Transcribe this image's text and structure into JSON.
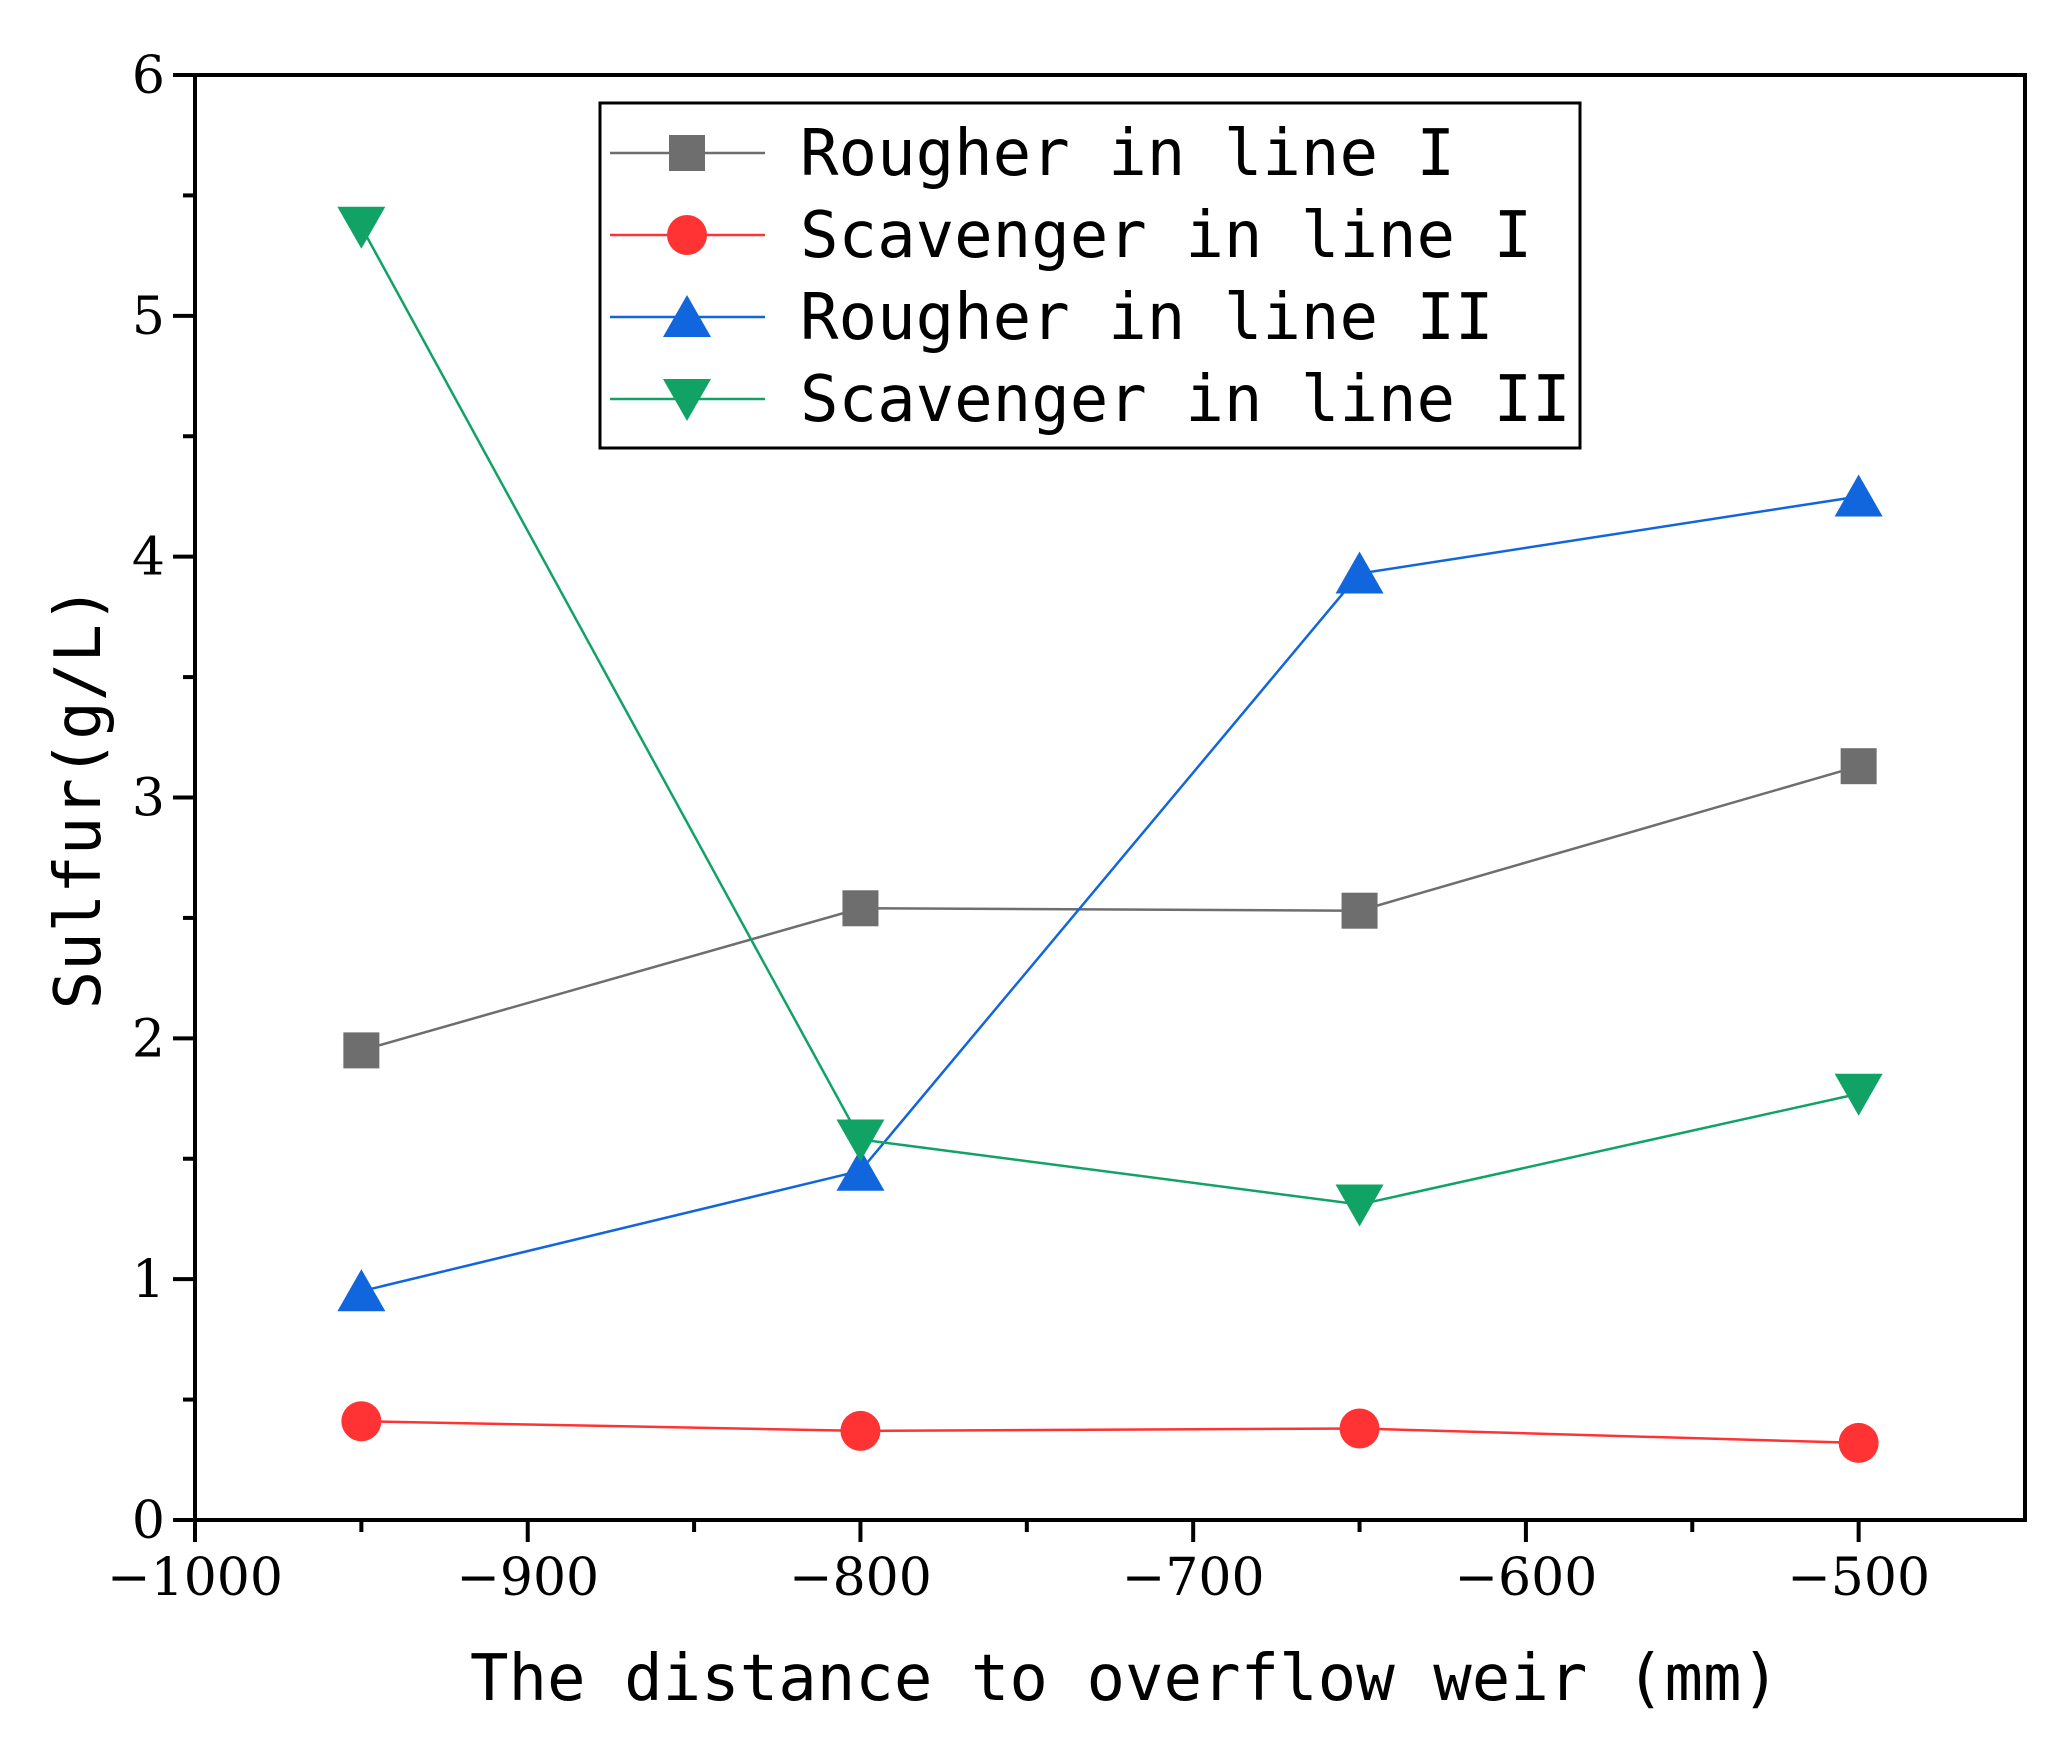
{
  "chart_data": {
    "type": "line",
    "title": "",
    "xlabel": "The distance to overflow weir (mm)",
    "ylabel": "Sulfur(g/L)",
    "xlim": [
      -1000,
      -450
    ],
    "ylim": [
      0,
      6
    ],
    "x": [
      -950,
      -800,
      -650,
      -500
    ],
    "xticks": [
      -1000,
      -900,
      -800,
      -700,
      -600,
      -500
    ],
    "xtick_labels": [
      "−1000",
      "−900",
      "−800",
      "−700",
      "−600",
      "−500"
    ],
    "yticks": [
      0,
      1,
      2,
      3,
      4,
      5,
      6
    ],
    "ytick_labels": [
      "0",
      "1",
      "2",
      "3",
      "4",
      "5",
      "6"
    ],
    "legend_position": "top-center",
    "series": [
      {
        "name": "Rougher in line I",
        "color": "#6e6e6e",
        "marker": "square",
        "values": [
          1.95,
          2.54,
          2.53,
          3.13
        ]
      },
      {
        "name": "Scavenger in line I",
        "color": "#ff3333",
        "marker": "circle",
        "values": [
          0.41,
          0.37,
          0.38,
          0.32
        ]
      },
      {
        "name": "Rougher in line II",
        "color": "#1166dd",
        "marker": "triangle-up",
        "values": [
          0.95,
          1.45,
          3.93,
          4.25
        ]
      },
      {
        "name": "Scavenger in line II",
        "color": "#11a366",
        "marker": "triangle-down",
        "values": [
          5.37,
          1.58,
          1.31,
          1.77
        ]
      }
    ]
  }
}
